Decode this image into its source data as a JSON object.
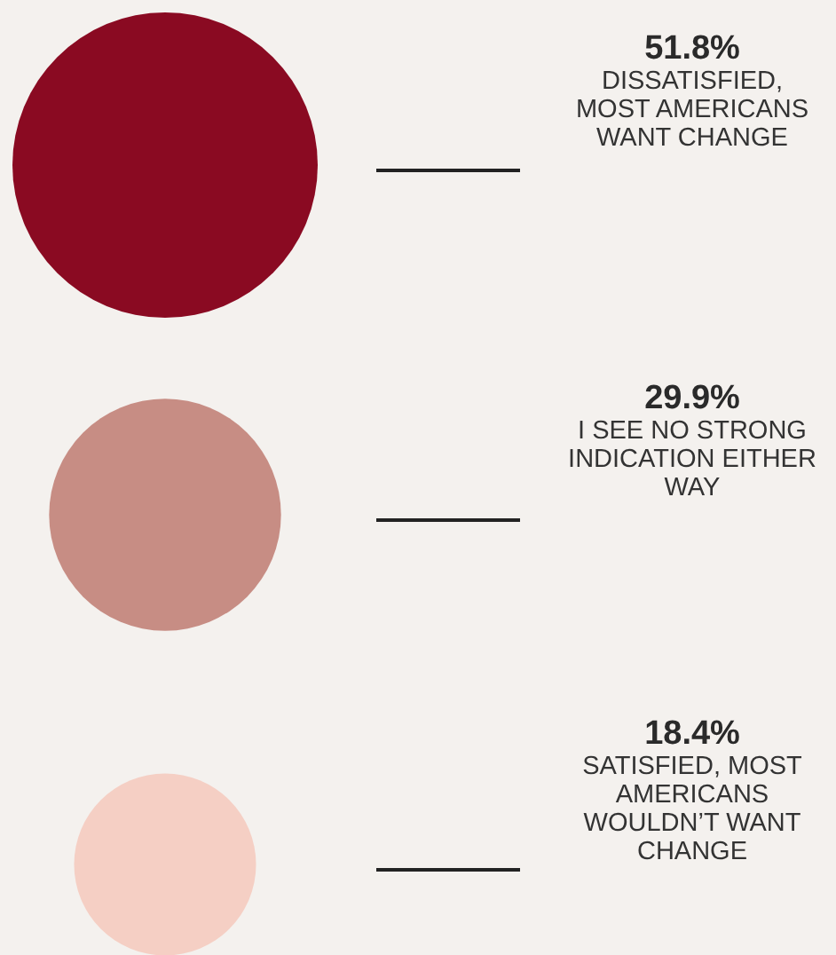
{
  "chart_data": {
    "type": "other",
    "categories": [
      "DISSATISFIED, MOST AMERICANS WANT CHANGE",
      "I SEE NO STRONG INDICATION EITHER WAY",
      "SATISFIED, MOST AMERICANS WOULDN’T WANT CHANGE"
    ],
    "values": [
      51.8,
      29.9,
      18.4
    ],
    "value_labels": [
      "51.8%",
      "29.9%",
      "18.4%"
    ],
    "colors": [
      "#8a0a22",
      "#c78d84",
      "#f5cfc4"
    ]
  }
}
